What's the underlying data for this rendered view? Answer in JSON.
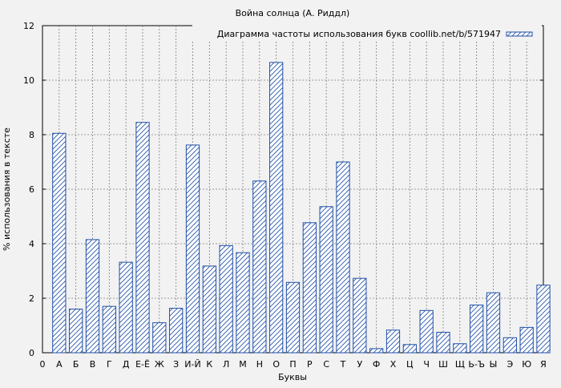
{
  "chart_data": {
    "type": "bar",
    "title": "Война солнца (А. Риддл)",
    "xlabel": "Буквы",
    "ylabel": "% использования в тексте",
    "legend": "Диаграмма частоты использования букв coollib.net/b/571947",
    "legend_position": "top-right",
    "grid": true,
    "ylim": [
      0,
      12
    ],
    "yticks": [
      0,
      2,
      4,
      6,
      8,
      10,
      12
    ],
    "x_origin_label": "0",
    "categories": [
      "А",
      "Б",
      "В",
      "Г",
      "Д",
      "Е-Ё",
      "Ж",
      "З",
      "И-Й",
      "К",
      "Л",
      "М",
      "Н",
      "О",
      "П",
      "Р",
      "С",
      "Т",
      "У",
      "Ф",
      "Х",
      "Ц",
      "Ч",
      "Ш",
      "Щ",
      "Ь-Ъ",
      "Ы",
      "Э",
      "Ю",
      "Я"
    ],
    "values": [
      8.05,
      1.6,
      4.15,
      1.7,
      3.32,
      8.45,
      1.1,
      1.63,
      7.62,
      3.18,
      3.93,
      3.67,
      6.3,
      10.65,
      2.58,
      4.77,
      5.36,
      7.0,
      2.73,
      0.15,
      0.83,
      0.3,
      1.55,
      0.75,
      0.33,
      1.75,
      2.2,
      0.55,
      0.93,
      2.48
    ],
    "colors": {
      "bar_stroke": "#1f4fa8",
      "hatch": "#1f4fa8",
      "bar_fill": "#ffffff",
      "plot_bg": "#f2f2f2",
      "grid": "#808080"
    }
  }
}
